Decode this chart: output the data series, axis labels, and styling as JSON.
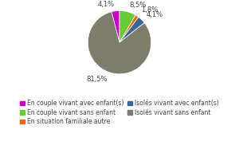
{
  "slices": [
    {
      "label": "En couple vivant avec enfant(s)",
      "value": 4.1,
      "color": "#cc00cc"
    },
    {
      "label": "En couple vivant sans enfant",
      "value": 8.5,
      "color": "#66cc33"
    },
    {
      "label": "En situation familiale autre",
      "value": 1.8,
      "color": "#ff6600"
    },
    {
      "label": "Isolés vivant avec enfant(s)",
      "value": 4.1,
      "color": "#336699"
    },
    {
      "label": "Isolés vivant sans enfant",
      "value": 81.5,
      "color": "#7d7d6b"
    }
  ],
  "pct_labels": [
    "4,1%",
    "8,5%",
    "1,8%",
    "4,1%",
    "81,5%"
  ],
  "legend_order": [
    {
      "label": "En couple vivant avec enfant(s)",
      "color": "#cc00cc"
    },
    {
      "label": "En couple vivant sans enfant",
      "color": "#66cc33"
    },
    {
      "label": "En situation familiale autre",
      "color": "#ff6600"
    },
    {
      "label": "Isolés vivant avec enfant(s)",
      "color": "#336699"
    },
    {
      "label": "Isolés vivant sans enfant",
      "color": "#7d7d6b"
    }
  ],
  "background_color": "#ffffff",
  "label_fontsize": 6.0,
  "legend_fontsize": 5.5,
  "startangle": 104.76
}
